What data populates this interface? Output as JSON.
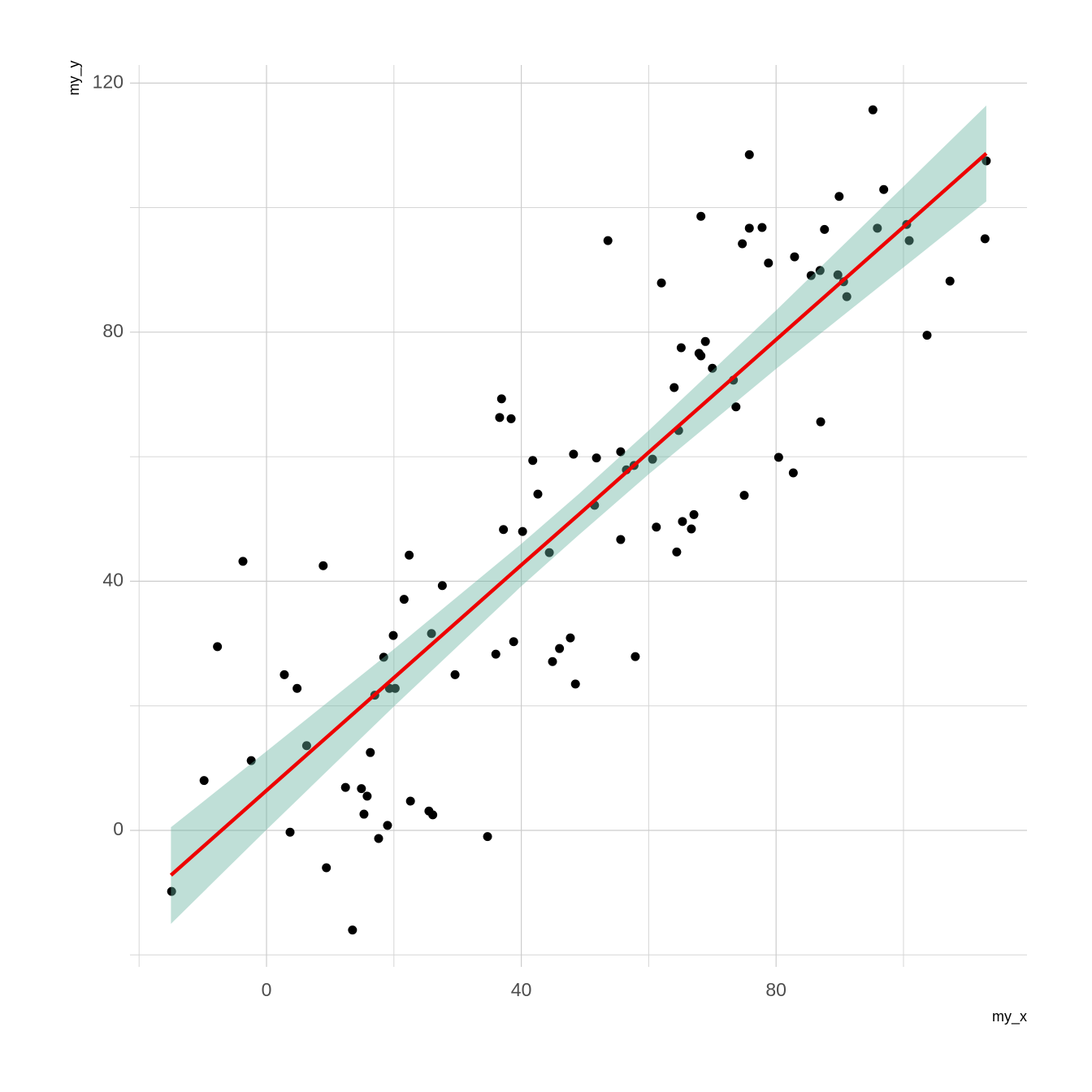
{
  "chart_data": {
    "type": "scatter",
    "x_label": "my_x",
    "y_label": "my_y",
    "xlim": [
      -21.43,
      119.39
    ],
    "ylim": [
      -21.92,
      122.9
    ],
    "xticks": [
      0,
      40,
      80
    ],
    "yticks": [
      0,
      40,
      80,
      120
    ],
    "x_minor_grid": [
      -20,
      20,
      60,
      100
    ],
    "y_minor_grid": [
      -20,
      20,
      60,
      100
    ],
    "grid": true,
    "point_color": "#000000",
    "x": [
      -14.9,
      -9.8,
      -7.7,
      -3.7,
      -2.4,
      2.8,
      3.7,
      4.8,
      6.3,
      8.9,
      9.4,
      12.4,
      13.5,
      14.9,
      15.3,
      15.8,
      16.3,
      17.0,
      17.6,
      18.4,
      19.0,
      19.3,
      19.9,
      20.2,
      21.6,
      22.4,
      22.6,
      25.5,
      25.9,
      26.1,
      27.6,
      29.6,
      34.7,
      36.0,
      36.6,
      36.9,
      37.2,
      38.4,
      38.8,
      40.2,
      41.8,
      42.6,
      44.4,
      44.9,
      46.0,
      47.7,
      48.2,
      48.5,
      51.5,
      51.8,
      53.6,
      55.6,
      55.6,
      56.5,
      57.7,
      57.9,
      60.6,
      61.2,
      62.0,
      64.0,
      64.4,
      64.7,
      65.1,
      65.3,
      66.7,
      67.1,
      67.9,
      68.2,
      68.2,
      68.9,
      70.0,
      73.3,
      73.7,
      74.7,
      75.0,
      75.8,
      75.8,
      77.8,
      78.8,
      80.4,
      82.7,
      82.9,
      85.5,
      86.9,
      87.0,
      87.6,
      89.7,
      89.9,
      90.6,
      91.1,
      95.2,
      95.9,
      96.9,
      100.5,
      100.9,
      103.7,
      107.3,
      112.8,
      113.0
    ],
    "y": [
      -9.8,
      8.0,
      29.5,
      43.2,
      11.2,
      25.0,
      -0.3,
      22.8,
      13.6,
      42.5,
      -6.0,
      6.9,
      -16.0,
      6.7,
      2.6,
      5.5,
      12.5,
      21.7,
      -1.3,
      27.8,
      0.8,
      22.8,
      31.3,
      22.8,
      37.1,
      44.2,
      4.7,
      3.1,
      31.6,
      2.5,
      39.3,
      25.0,
      -1.0,
      28.3,
      66.3,
      69.3,
      48.3,
      66.1,
      30.3,
      48.0,
      59.4,
      54.0,
      44.6,
      27.1,
      29.2,
      30.9,
      60.4,
      23.5,
      52.2,
      59.8,
      94.7,
      46.7,
      60.8,
      57.9,
      58.6,
      27.9,
      59.6,
      48.7,
      87.9,
      71.1,
      44.7,
      64.2,
      77.5,
      49.6,
      48.4,
      50.7,
      76.6,
      76.2,
      98.6,
      78.5,
      74.2,
      72.3,
      68.0,
      94.2,
      53.8,
      108.5,
      96.7,
      96.8,
      91.1,
      59.9,
      57.4,
      92.1,
      89.1,
      89.9,
      65.6,
      96.5,
      89.2,
      101.8,
      88.1,
      85.7,
      115.7,
      96.7,
      102.9,
      97.3,
      94.7,
      79.5,
      88.2,
      95.0,
      107.5
    ],
    "fit": {
      "color": "#ee0000",
      "band_color": "#66b2a0",
      "x": [
        -15,
        0,
        20,
        40,
        49,
        60,
        80,
        100,
        113
      ],
      "y": [
        -7.2,
        6.4,
        24.5,
        42.6,
        50.7,
        60.7,
        78.8,
        96.9,
        108.7
      ],
      "lower": [
        -15.0,
        0.1,
        19.9,
        39.2,
        47.4,
        57.2,
        74.1,
        90.4,
        101.0
      ],
      "upper": [
        0.5,
        12.7,
        29.1,
        46.0,
        54.0,
        64.2,
        83.5,
        103.4,
        116.4
      ]
    }
  }
}
